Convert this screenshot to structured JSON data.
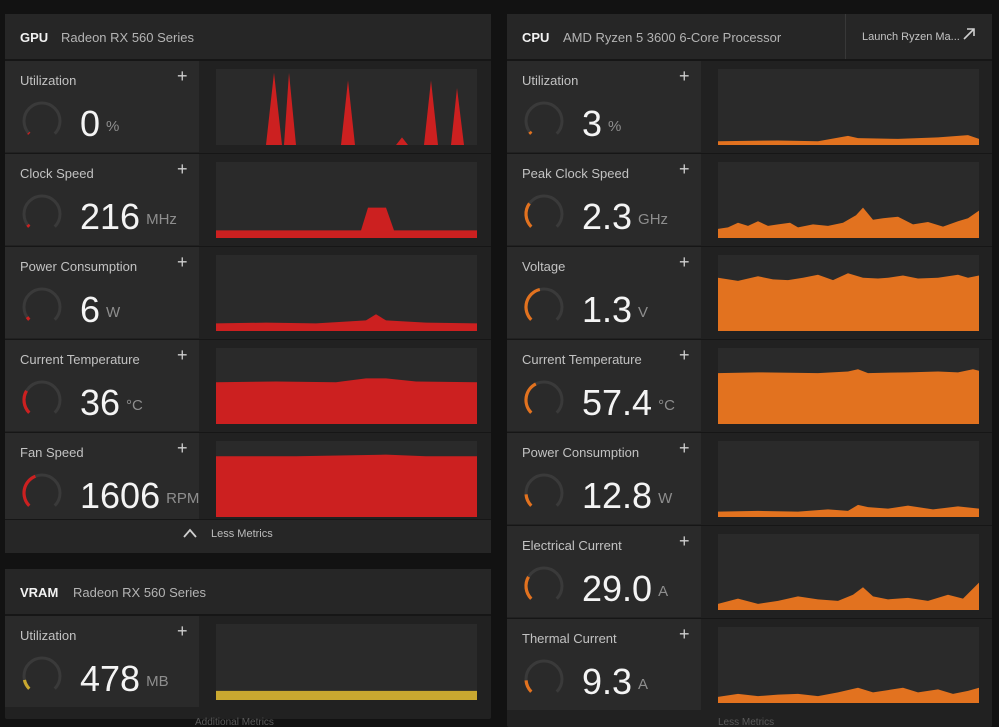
{
  "colors": {
    "gpu": "#cc2020",
    "cpu": "#e2721f",
    "vram": "#c9a830",
    "gauge_track": "#3a3a3a"
  },
  "gpu": {
    "tag": "GPU",
    "name": "Radeon RX 560 Series",
    "metrics": [
      {
        "label": "Utilization",
        "value": "0",
        "unit": "%",
        "level": 0.0
      },
      {
        "label": "Clock Speed",
        "value": "216",
        "unit": "MHz",
        "level": 0.03
      },
      {
        "label": "Power Consumption",
        "value": "6",
        "unit": "W",
        "level": 0.04
      },
      {
        "label": "Current Temperature",
        "value": "36",
        "unit": "°C",
        "level": 0.28
      },
      {
        "label": "Fan Speed",
        "value": "1606",
        "unit": "RPM",
        "level": 0.42
      }
    ],
    "footer_label": "Less Metrics"
  },
  "vram": {
    "tag": "VRAM",
    "name": "Radeon RX 560 Series",
    "metrics": [
      {
        "label": "Utilization",
        "value": "478",
        "unit": "MB",
        "level": 0.12
      }
    ]
  },
  "cpu": {
    "tag": "CPU",
    "name": "AMD Ryzen 5 3600 6-Core Processor",
    "launch_label": "Launch Ryzen Ma...",
    "metrics": [
      {
        "label": "Utilization",
        "value": "3",
        "unit": "%",
        "level": 0.03
      },
      {
        "label": "Peak Clock Speed",
        "value": "2.3",
        "unit": "GHz",
        "level": 0.3
      },
      {
        "label": "Voltage",
        "value": "1.3",
        "unit": "V",
        "level": 0.45
      },
      {
        "label": "Current Temperature",
        "value": "57.4",
        "unit": "°C",
        "level": 0.4
      },
      {
        "label": "Power Consumption",
        "value": "12.8",
        "unit": "W",
        "level": 0.15
      },
      {
        "label": "Electrical Current",
        "value": "29.0",
        "unit": "A",
        "level": 0.28
      },
      {
        "label": "Thermal Current",
        "value": "9.3",
        "unit": "A",
        "level": 0.15
      }
    ]
  },
  "ghost": {
    "additional_metrics": "Additional Metrics",
    "less_metrics": "Less Metrics"
  }
}
